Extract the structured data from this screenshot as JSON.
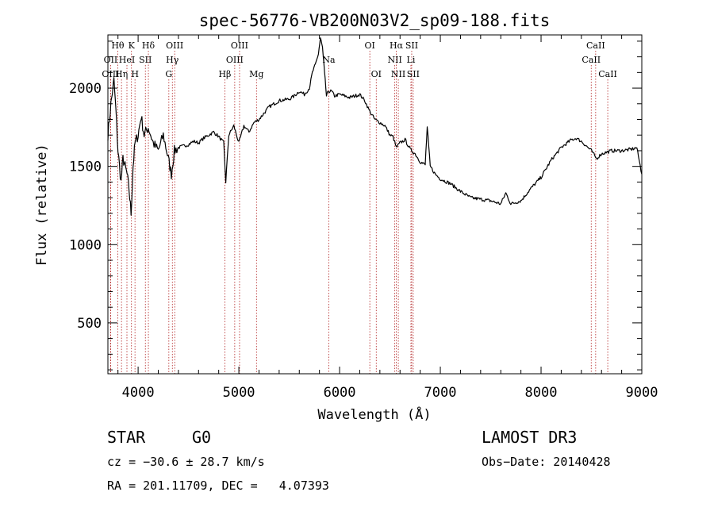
{
  "chart_data": {
    "type": "line",
    "title": "spec-56776-VB200N03V2_sp09-188.fits",
    "xlabel": "Wavelength (Å)",
    "ylabel": "Flux (relative)",
    "xlim": [
      3700,
      9000
    ],
    "ylim": [
      175,
      2340
    ],
    "xticks": [
      4000,
      5000,
      6000,
      7000,
      8000,
      9000
    ],
    "yticks": [
      500,
      1000,
      1500,
      2000
    ],
    "series": [
      {
        "name": "flux",
        "x": [
          3700,
          3730,
          3760,
          3780,
          3800,
          3830,
          3850,
          3870,
          3890,
          3910,
          3930,
          3950,
          3970,
          4000,
          4030,
          4060,
          4100,
          4150,
          4200,
          4250,
          4300,
          4330,
          4360,
          4400,
          4450,
          4500,
          4550,
          4600,
          4650,
          4700,
          4750,
          4800,
          4850,
          4870,
          4900,
          4950,
          5000,
          5050,
          5100,
          5150,
          5200,
          5300,
          5400,
          5500,
          5550,
          5600,
          5650,
          5700,
          5730,
          5760,
          5790,
          5810,
          5830,
          5850,
          5870,
          5890,
          5920,
          5950,
          6000,
          6100,
          6200,
          6250,
          6300,
          6350,
          6400,
          6450,
          6500,
          6530,
          6563,
          6600,
          6650,
          6700,
          6750,
          6800,
          6850,
          6870,
          6900,
          6950,
          7000,
          7100,
          7200,
          7300,
          7400,
          7500,
          7600,
          7650,
          7700,
          7800,
          7900,
          8000,
          8100,
          8200,
          8300,
          8350,
          8400,
          8500,
          8550,
          8600,
          8700,
          8800,
          8900,
          8950,
          9000
        ],
        "y": [
          1700,
          1900,
          2050,
          1850,
          1600,
          1400,
          1550,
          1500,
          1450,
          1350,
          1200,
          1500,
          1650,
          1700,
          1820,
          1700,
          1750,
          1650,
          1600,
          1700,
          1550,
          1450,
          1600,
          1620,
          1630,
          1640,
          1660,
          1650,
          1680,
          1700,
          1720,
          1690,
          1650,
          1400,
          1700,
          1760,
          1650,
          1760,
          1720,
          1780,
          1800,
          1880,
          1920,
          1930,
          1950,
          1980,
          1960,
          2000,
          2100,
          2150,
          2220,
          2320,
          2260,
          2100,
          1950,
          1980,
          1980,
          1950,
          1960,
          1940,
          1960,
          1920,
          1850,
          1800,
          1780,
          1760,
          1700,
          1690,
          1620,
          1650,
          1670,
          1610,
          1580,
          1530,
          1510,
          1750,
          1500,
          1450,
          1420,
          1390,
          1340,
          1300,
          1290,
          1280,
          1260,
          1330,
          1260,
          1280,
          1360,
          1430,
          1540,
          1620,
          1670,
          1680,
          1660,
          1600,
          1550,
          1580,
          1600,
          1600,
          1610,
          1620,
          1450
        ]
      }
    ],
    "spectral_lines": [
      {
        "label": "Hθ",
        "wl": 3798,
        "row": 0
      },
      {
        "label": "K",
        "wl": 3934,
        "row": 0
      },
      {
        "label": "Hδ",
        "wl": 4102,
        "row": 0
      },
      {
        "label": "OIII",
        "wl": 4363,
        "row": 0
      },
      {
        "label": "OIII",
        "wl": 5007,
        "row": 0
      },
      {
        "label": "OI",
        "wl": 6300,
        "row": 0
      },
      {
        "label": "Hα",
        "wl": 6563,
        "row": 0
      },
      {
        "label": "SII",
        "wl": 6716,
        "row": 0
      },
      {
        "label": "CaII",
        "wl": 8542,
        "row": 0
      },
      {
        "label": "OII",
        "wl": 3727,
        "row": 1
      },
      {
        "label": "HeI",
        "wl": 3889,
        "row": 1
      },
      {
        "label": "SII",
        "wl": 4072,
        "row": 1
      },
      {
        "label": "Hγ",
        "wl": 4340,
        "row": 1
      },
      {
        "label": "OIII",
        "wl": 4959,
        "row": 1
      },
      {
        "label": "Na",
        "wl": 5893,
        "row": 1
      },
      {
        "label": "NII",
        "wl": 6548,
        "row": 1
      },
      {
        "label": "Li",
        "wl": 6708,
        "row": 1
      },
      {
        "label": "CaII",
        "wl": 8498,
        "row": 1
      },
      {
        "label": "OIII",
        "wl": 3727,
        "row": 2
      },
      {
        "label": "Hη",
        "wl": 3835,
        "row": 2
      },
      {
        "label": "H",
        "wl": 3969,
        "row": 2
      },
      {
        "label": "G",
        "wl": 4305,
        "row": 2
      },
      {
        "label": "Hβ",
        "wl": 4861,
        "row": 2
      },
      {
        "label": "Mg",
        "wl": 5175,
        "row": 2
      },
      {
        "label": "OI",
        "wl": 6364,
        "row": 2
      },
      {
        "label": "NII",
        "wl": 6583,
        "row": 2
      },
      {
        "label": "SII",
        "wl": 6731,
        "row": 2
      },
      {
        "label": "CaII",
        "wl": 8662,
        "row": 2
      }
    ]
  },
  "info": {
    "class_label": "STAR",
    "subclass": "G0",
    "survey": "LAMOST DR3",
    "cz_text": "cz = −30.6 ± 28.7 km/s",
    "obs_date_text": "Obs−Date: 20140428",
    "radec_text": "RA = 201.11709, DEC =   4.07393"
  },
  "colors": {
    "line": "#000000",
    "marker": "#b22222",
    "background": "#ffffff"
  }
}
